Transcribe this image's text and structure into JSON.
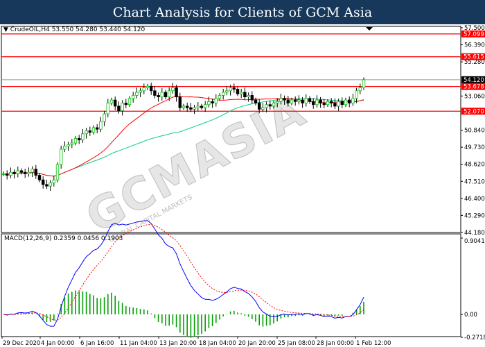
{
  "title": "Chart Analysis for Clients of GCM Asia",
  "symbol_label": "CrudeOIL,H4  53.550 54.280 53.440 54.120",
  "macd_label": "MACD(12,26,9) 0.2359 0.0456 0.1903",
  "watermark": "GCMASIA",
  "watermark_sub": "GLOBAL CAPITAL MARKETS",
  "chart_data": {
    "type": "candlestick",
    "symbol": "CrudeOIL",
    "timeframe": "H4",
    "price_ylim": [
      44.18,
      57.5
    ],
    "price_ticks": [
      "57.500",
      "56.390",
      "55.280",
      "53.060",
      "50.840",
      "49.730",
      "48.620",
      "47.510",
      "46.400",
      "45.290",
      "44.180"
    ],
    "levels": [
      {
        "value": 57.099,
        "label": "57.099",
        "color": "#ff0000"
      },
      {
        "value": 55.615,
        "label": "55.615",
        "color": "#ff0000"
      },
      {
        "value": 53.678,
        "label": "53.678",
        "color": "#ff0000"
      },
      {
        "value": 52.07,
        "label": "52.070",
        "color": "#ff0000"
      }
    ],
    "current_price": {
      "value": 54.12,
      "label": "54.120"
    },
    "closes": [
      48.0,
      47.9,
      48.1,
      48.0,
      48.2,
      48.1,
      48.0,
      48.1,
      48.3,
      47.9,
      47.6,
      47.3,
      47.2,
      47.4,
      47.6,
      48.6,
      49.6,
      49.8,
      49.9,
      50.0,
      50.3,
      50.2,
      50.6,
      50.8,
      50.7,
      51.0,
      50.9,
      51.4,
      51.9,
      52.6,
      52.8,
      52.4,
      52.1,
      52.6,
      52.5,
      52.9,
      53.1,
      53.3,
      53.4,
      53.6,
      53.7,
      53.4,
      53.1,
      53.0,
      53.3,
      53.0,
      53.4,
      53.6,
      53.0,
      52.3,
      52.4,
      52.3,
      52.2,
      52.3,
      52.4,
      52.3,
      52.5,
      52.7,
      52.6,
      52.9,
      53.1,
      53.3,
      53.4,
      53.6,
      53.5,
      53.2,
      53.3,
      53.0,
      53.1,
      52.8,
      52.6,
      52.2,
      52.3,
      52.5,
      52.4,
      52.6,
      52.7,
      52.9,
      52.8,
      52.6,
      52.8,
      52.7,
      52.8,
      52.6,
      52.9,
      52.7,
      52.5,
      52.8,
      52.6,
      52.5,
      52.7,
      52.6,
      52.4,
      52.7,
      52.5,
      52.8,
      52.6,
      52.9,
      53.4,
      53.6,
      54.12
    ],
    "ma_red_period": 20,
    "ma_green_period": 50,
    "macd_params": [
      12,
      26,
      9
    ],
    "macd_ylim": [
      -0.2718,
      0.9041
    ],
    "macd_ticks": [
      "0.9041",
      "0.00",
      "-0.2718"
    ],
    "x_labels": [
      "29 Dec 2020",
      "4 Jan 00:00",
      "6 Jan 16:00",
      "11 Jan 04:00",
      "13 Jan 20:00",
      "18 Jan 04:00",
      "20 Jan 20:00",
      "25 Jan 08:00",
      "28 Jan 00:00",
      "1 Feb 12:00"
    ],
    "colors": {
      "bull": "#00c000",
      "bear": "#000000",
      "ma_red": "#ff0000",
      "ma_green": "#00d080",
      "macd": "#0000ff",
      "signal": "#ff0000",
      "hist": "#00a000"
    }
  }
}
